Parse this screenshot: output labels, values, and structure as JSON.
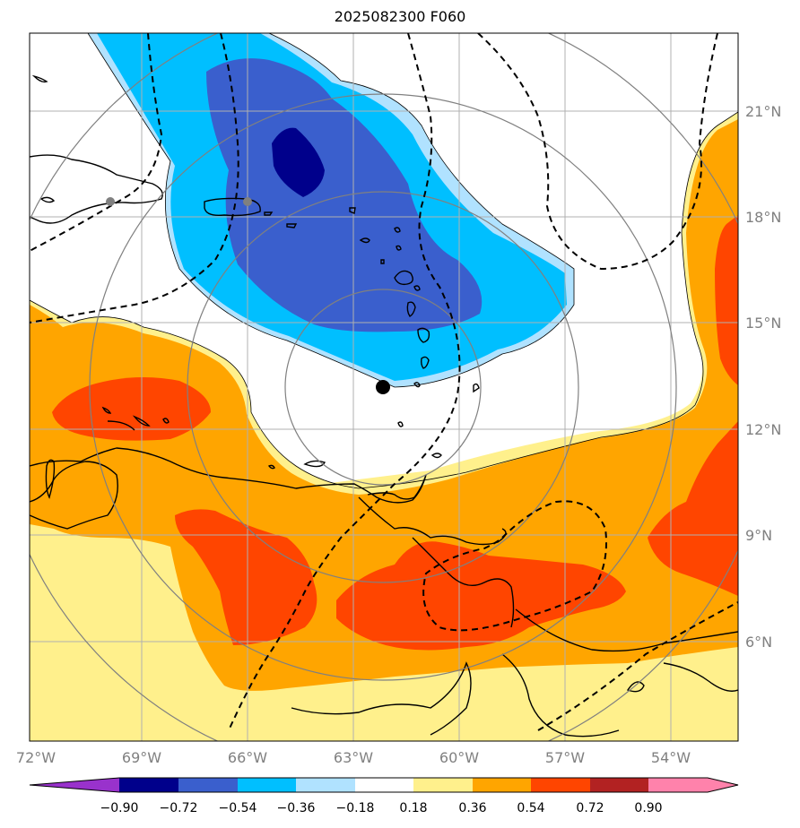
{
  "title": "2025082300 F060",
  "colors": {
    "c1": "#9932cc",
    "c2": "#00008b",
    "c3": "#3a5fcd",
    "c4": "#00bfff",
    "c5": "#b0e2ff",
    "c6": "#ffffff",
    "c7": "#fff08c",
    "c8": "#ffa500",
    "c9": "#ff4500",
    "c10": "#b22222",
    "c11": "#ff82ab",
    "grid": "#b0b0b0",
    "rings": "#808080",
    "land": "#000000"
  },
  "map": {
    "lon_labels": [
      "72°W",
      "69°W",
      "66°W",
      "63°W",
      "60°W",
      "57°W",
      "54°W"
    ],
    "lat_labels": [
      "21°N",
      "18°N",
      "15°N",
      "12°N",
      "9°N",
      "6°N"
    ],
    "center_marker": "storm-center",
    "cities": [
      "puerto-rico-marker",
      "hispaniola-marker"
    ]
  },
  "colorbar": {
    "ticks": [
      "−0.90",
      "−0.72",
      "−0.54",
      "−0.36",
      "−0.18",
      "0.18",
      "0.36",
      "0.54",
      "0.72",
      "0.90"
    ]
  }
}
